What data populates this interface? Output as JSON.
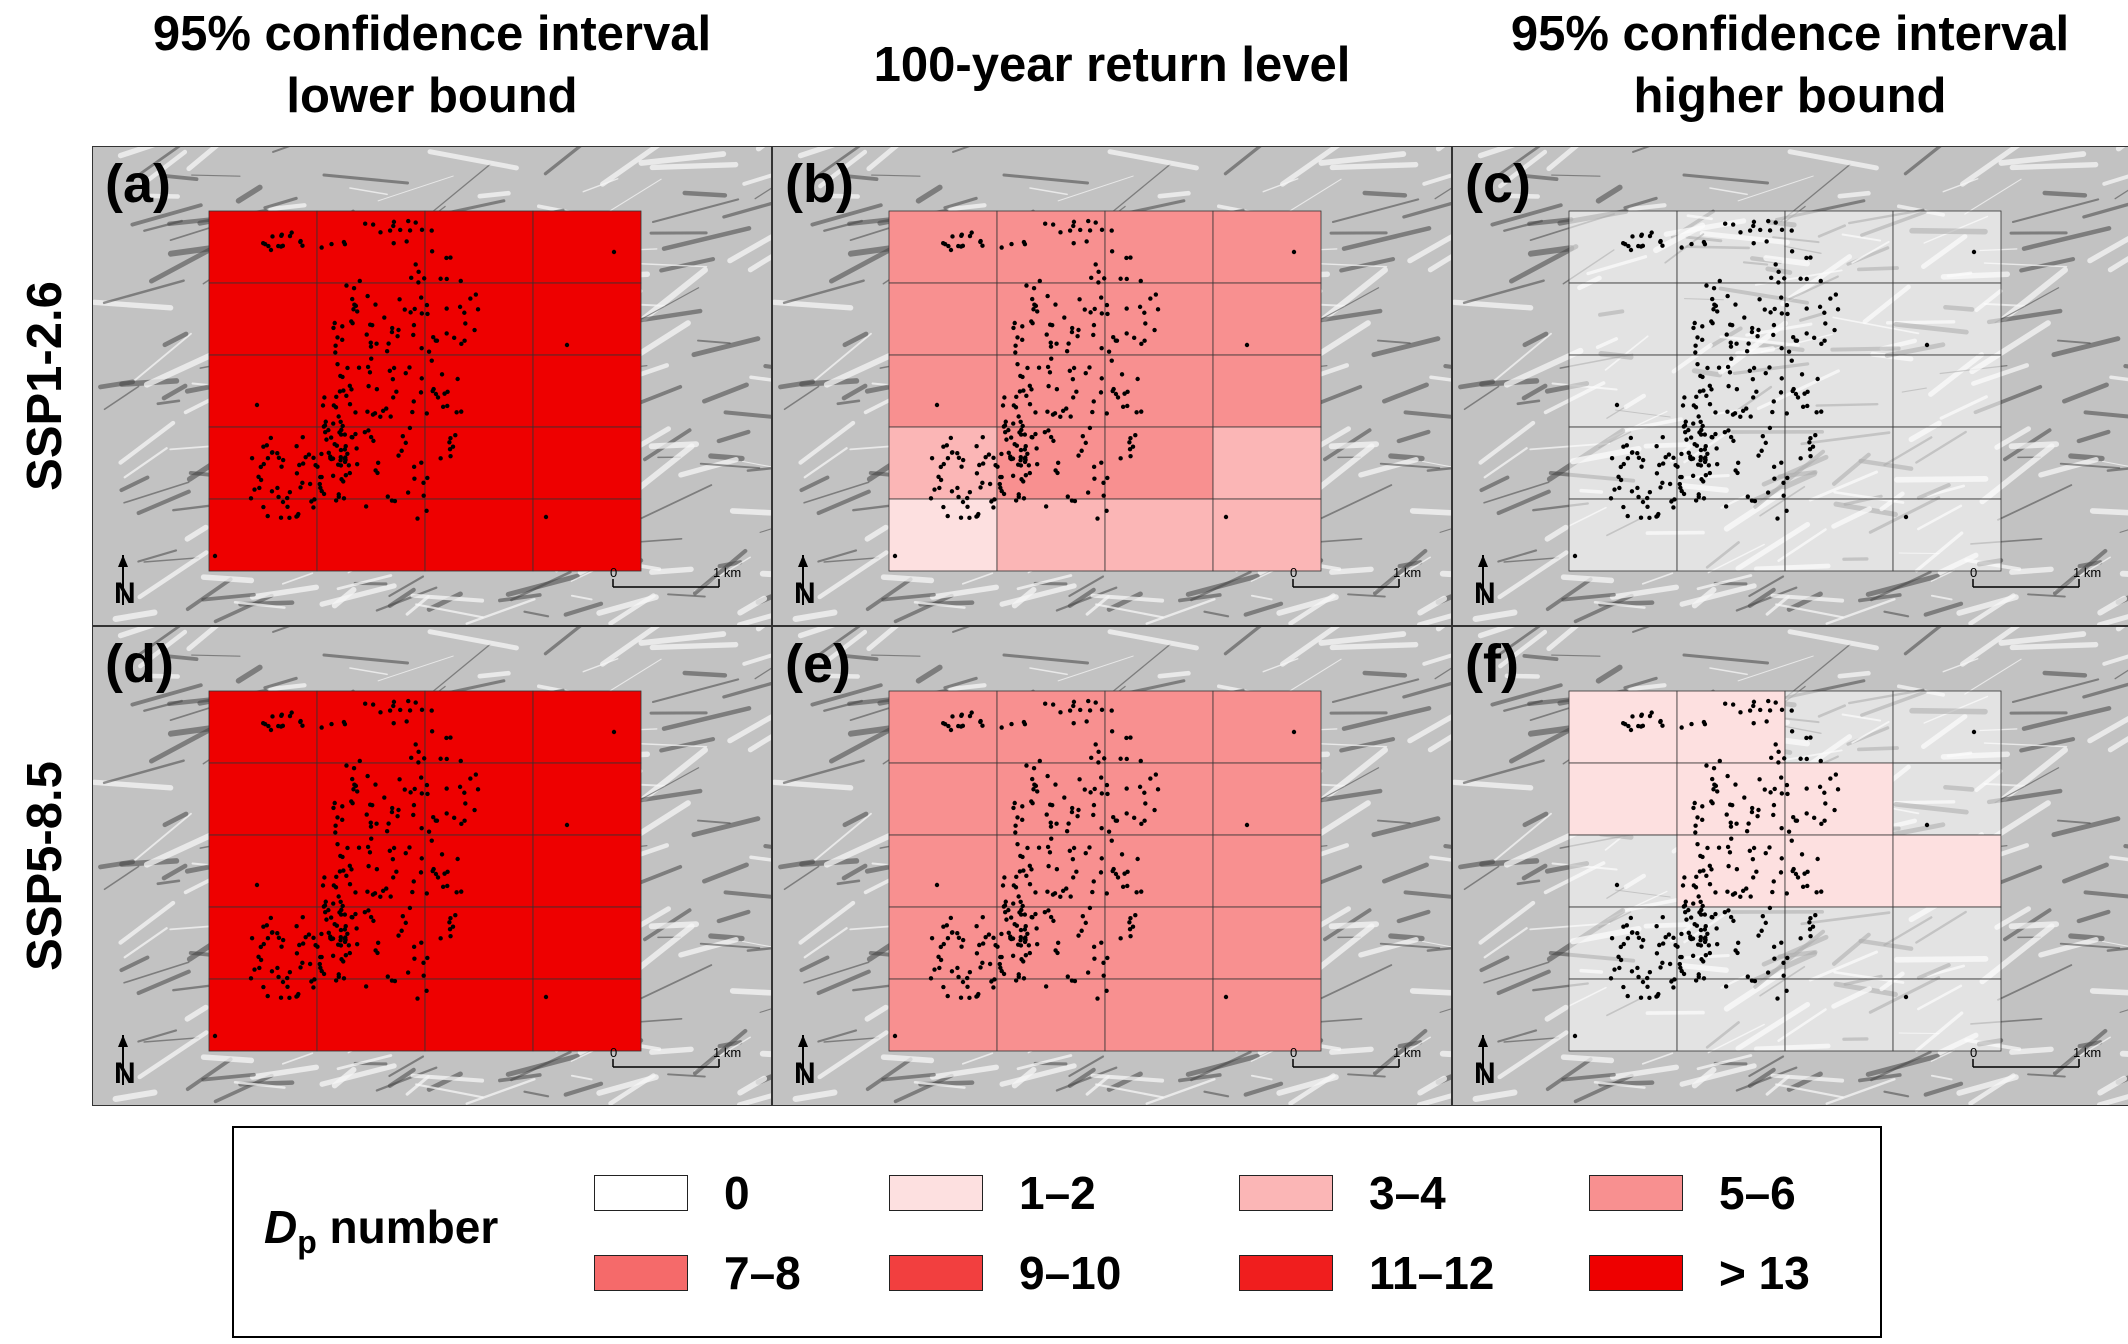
{
  "columns": [
    {
      "title": "95% confidence interval\nlower bound"
    },
    {
      "title": "100-year return level"
    },
    {
      "title": "95% confidence interval\nhigher bound"
    }
  ],
  "rows": [
    {
      "title": "SSP1-2.6"
    },
    {
      "title": "SSP5-8.5"
    }
  ],
  "scale_bar": {
    "start": "0",
    "end": "1 km"
  },
  "north_arrow": {
    "label": "N",
    "icon": "north-arrow-icon"
  },
  "panels": [
    {
      "label": "(a)",
      "row": 0,
      "col": 0,
      "grid_classes": [
        [
          7,
          7,
          7,
          7
        ],
        [
          7,
          7,
          7,
          7
        ],
        [
          7,
          7,
          7,
          7
        ],
        [
          7,
          7,
          7,
          7
        ],
        [
          7,
          7,
          7,
          7
        ]
      ]
    },
    {
      "label": "(b)",
      "row": 0,
      "col": 1,
      "grid_classes": [
        [
          3,
          3,
          3,
          3
        ],
        [
          3,
          3,
          3,
          3
        ],
        [
          3,
          3,
          3,
          3
        ],
        [
          2,
          3,
          3,
          2
        ],
        [
          1,
          2,
          2,
          2
        ]
      ]
    },
    {
      "label": "(c)",
      "row": 0,
      "col": 2,
      "grid_classes": [
        [
          0,
          0,
          0,
          0
        ],
        [
          0,
          0,
          0,
          0
        ],
        [
          0,
          0,
          0,
          0
        ],
        [
          0,
          0,
          0,
          0
        ],
        [
          0,
          0,
          0,
          0
        ]
      ]
    },
    {
      "label": "(d)",
      "row": 1,
      "col": 0,
      "grid_classes": [
        [
          7,
          7,
          7,
          7
        ],
        [
          7,
          7,
          7,
          7
        ],
        [
          7,
          7,
          7,
          7
        ],
        [
          7,
          7,
          7,
          7
        ],
        [
          7,
          7,
          7,
          7
        ]
      ]
    },
    {
      "label": "(e)",
      "row": 1,
      "col": 1,
      "grid_classes": [
        [
          3,
          3,
          3,
          3
        ],
        [
          3,
          3,
          3,
          3
        ],
        [
          3,
          3,
          3,
          3
        ],
        [
          3,
          3,
          3,
          3
        ],
        [
          3,
          3,
          3,
          3
        ]
      ]
    },
    {
      "label": "(f)",
      "row": 1,
      "col": 2,
      "grid_classes": [
        [
          1,
          1,
          0,
          0
        ],
        [
          1,
          1,
          1,
          0
        ],
        [
          0,
          1,
          1,
          1
        ],
        [
          0,
          0,
          0,
          0
        ],
        [
          0,
          0,
          0,
          0
        ]
      ]
    }
  ],
  "legend": {
    "title_main": "D",
    "title_sub": "p",
    "title_rest": " number",
    "classes": [
      {
        "label": "0",
        "color": "#ffffff"
      },
      {
        "label": "1–2",
        "color": "#fde0e0"
      },
      {
        "label": "3–4",
        "color": "#fbb6b6"
      },
      {
        "label": "5–6",
        "color": "#f89090"
      },
      {
        "label": "7–8",
        "color": "#f56a6a"
      },
      {
        "label": "9–10",
        "color": "#f23f3f"
      },
      {
        "label": "11–12",
        "color": "#f01e1e"
      },
      {
        "label": "> 13",
        "color": "#ee0000"
      }
    ]
  }
}
